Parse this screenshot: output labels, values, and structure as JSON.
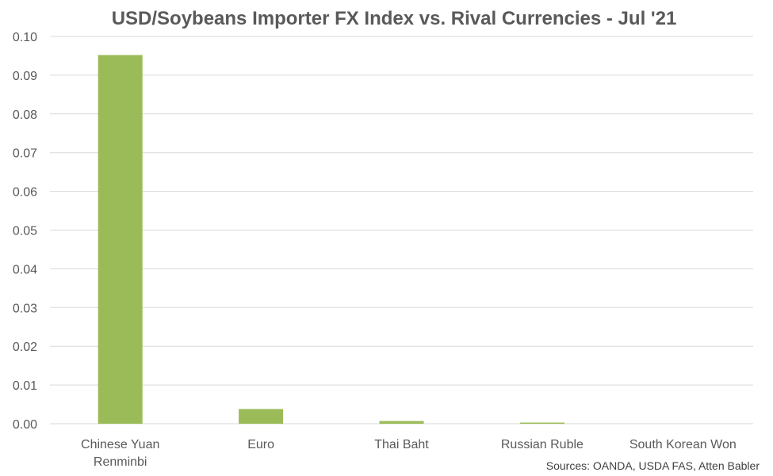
{
  "chart_data": {
    "type": "bar",
    "title": "USD/Soybeans Importer FX Index vs. Rival Currencies - Jul '21",
    "xlabel": "",
    "ylabel": "",
    "categories": [
      [
        "Chinese Yuan",
        "Renminbi"
      ],
      [
        "Euro"
      ],
      [
        "Thai Baht"
      ],
      [
        "Russian Ruble"
      ],
      [
        "South Korean Won"
      ]
    ],
    "values": [
      0.0952,
      0.0038,
      0.0007,
      0.0003,
      0.0
    ],
    "ylim": [
      0,
      0.1
    ],
    "yticks": [
      "0.00",
      "0.01",
      "0.02",
      "0.03",
      "0.04",
      "0.05",
      "0.06",
      "0.07",
      "0.08",
      "0.09",
      "0.10"
    ],
    "grid": true,
    "legend": "none",
    "bar_color": "#9bbb59"
  },
  "source_note": "Sources: OANDA, USDA FAS, Atten Babler"
}
